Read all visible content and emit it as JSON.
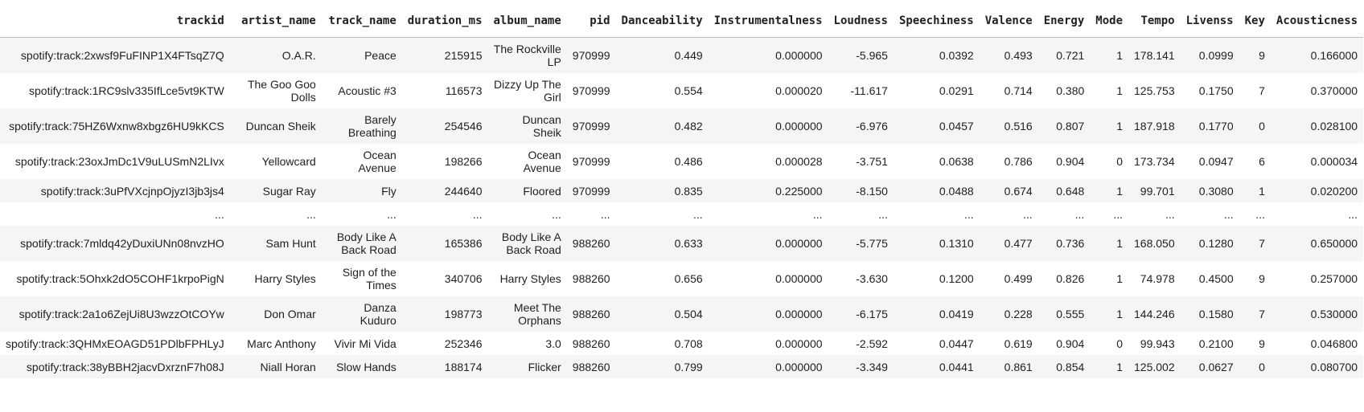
{
  "table": {
    "columns": [
      "trackid",
      "artist_name",
      "track_name",
      "duration_ms",
      "album_name",
      "pid",
      "Danceability",
      "Instrumentalness",
      "Loudness",
      "Speechiness",
      "Valence",
      "Energy",
      "Mode",
      "Tempo",
      "Livenss",
      "Key",
      "Acousticness"
    ],
    "rows": [
      [
        "spotify:track:2xwsf9FuFINP1X4FTsqZ7Q",
        "O.A.R.",
        "Peace",
        "215915",
        "The Rockville LP",
        "970999",
        "0.449",
        "0.000000",
        "-5.965",
        "0.0392",
        "0.493",
        "0.721",
        "1",
        "178.141",
        "0.0999",
        "9",
        "0.166000"
      ],
      [
        "spotify:track:1RC9slv335IfLce5vt9KTW",
        "The Goo Goo Dolls",
        "Acoustic #3",
        "116573",
        "Dizzy Up The Girl",
        "970999",
        "0.554",
        "0.000020",
        "-11.617",
        "0.0291",
        "0.714",
        "0.380",
        "1",
        "125.753",
        "0.1750",
        "7",
        "0.370000"
      ],
      [
        "spotify:track:75HZ6Wxnw8xbgz6HU9kKCS",
        "Duncan Sheik",
        "Barely Breathing",
        "254546",
        "Duncan Sheik",
        "970999",
        "0.482",
        "0.000000",
        "-6.976",
        "0.0457",
        "0.516",
        "0.807",
        "1",
        "187.918",
        "0.1770",
        "0",
        "0.028100"
      ],
      [
        "spotify:track:23oxJmDc1V9uLUSmN2LIvx",
        "Yellowcard",
        "Ocean Avenue",
        "198266",
        "Ocean Avenue",
        "970999",
        "0.486",
        "0.000028",
        "-3.751",
        "0.0638",
        "0.786",
        "0.904",
        "0",
        "173.734",
        "0.0947",
        "6",
        "0.000034"
      ],
      [
        "spotify:track:3uPfVXcjnpOjyzI3jb3js4",
        "Sugar Ray",
        "Fly",
        "244640",
        "Floored",
        "970999",
        "0.835",
        "0.225000",
        "-8.150",
        "0.0488",
        "0.674",
        "0.648",
        "1",
        "99.701",
        "0.3080",
        "1",
        "0.020200"
      ],
      [
        "...",
        "...",
        "...",
        "...",
        "...",
        "...",
        "...",
        "...",
        "...",
        "...",
        "...",
        "...",
        "...",
        "...",
        "...",
        "...",
        "..."
      ],
      [
        "spotify:track:7mldq42yDuxiUNn08nvzHO",
        "Sam Hunt",
        "Body Like A Back Road",
        "165386",
        "Body Like A Back Road",
        "988260",
        "0.633",
        "0.000000",
        "-5.775",
        "0.1310",
        "0.477",
        "0.736",
        "1",
        "168.050",
        "0.1280",
        "7",
        "0.650000"
      ],
      [
        "spotify:track:5Ohxk2dO5COHF1krpoPigN",
        "Harry Styles",
        "Sign of the Times",
        "340706",
        "Harry Styles",
        "988260",
        "0.656",
        "0.000000",
        "-3.630",
        "0.1200",
        "0.499",
        "0.826",
        "1",
        "74.978",
        "0.4500",
        "9",
        "0.257000"
      ],
      [
        "spotify:track:2a1o6ZejUi8U3wzzOtCOYw",
        "Don Omar",
        "Danza Kuduro",
        "198773",
        "Meet The Orphans",
        "988260",
        "0.504",
        "0.000000",
        "-6.175",
        "0.0419",
        "0.228",
        "0.555",
        "1",
        "144.246",
        "0.1580",
        "7",
        "0.530000"
      ],
      [
        "spotify:track:3QHMxEOAGD51PDlbFPHLyJ",
        "Marc Anthony",
        "Vivir Mi Vida",
        "252346",
        "3.0",
        "988260",
        "0.708",
        "0.000000",
        "-2.592",
        "0.0447",
        "0.619",
        "0.904",
        "0",
        "99.943",
        "0.2100",
        "9",
        "0.046800"
      ],
      [
        "spotify:track:38yBBH2jacvDxrznF7h08J",
        "Niall Horan",
        "Slow Hands",
        "188174",
        "Flicker",
        "988260",
        "0.799",
        "0.000000",
        "-3.349",
        "0.0441",
        "0.861",
        "0.854",
        "1",
        "125.002",
        "0.0627",
        "0",
        "0.080700"
      ]
    ]
  }
}
